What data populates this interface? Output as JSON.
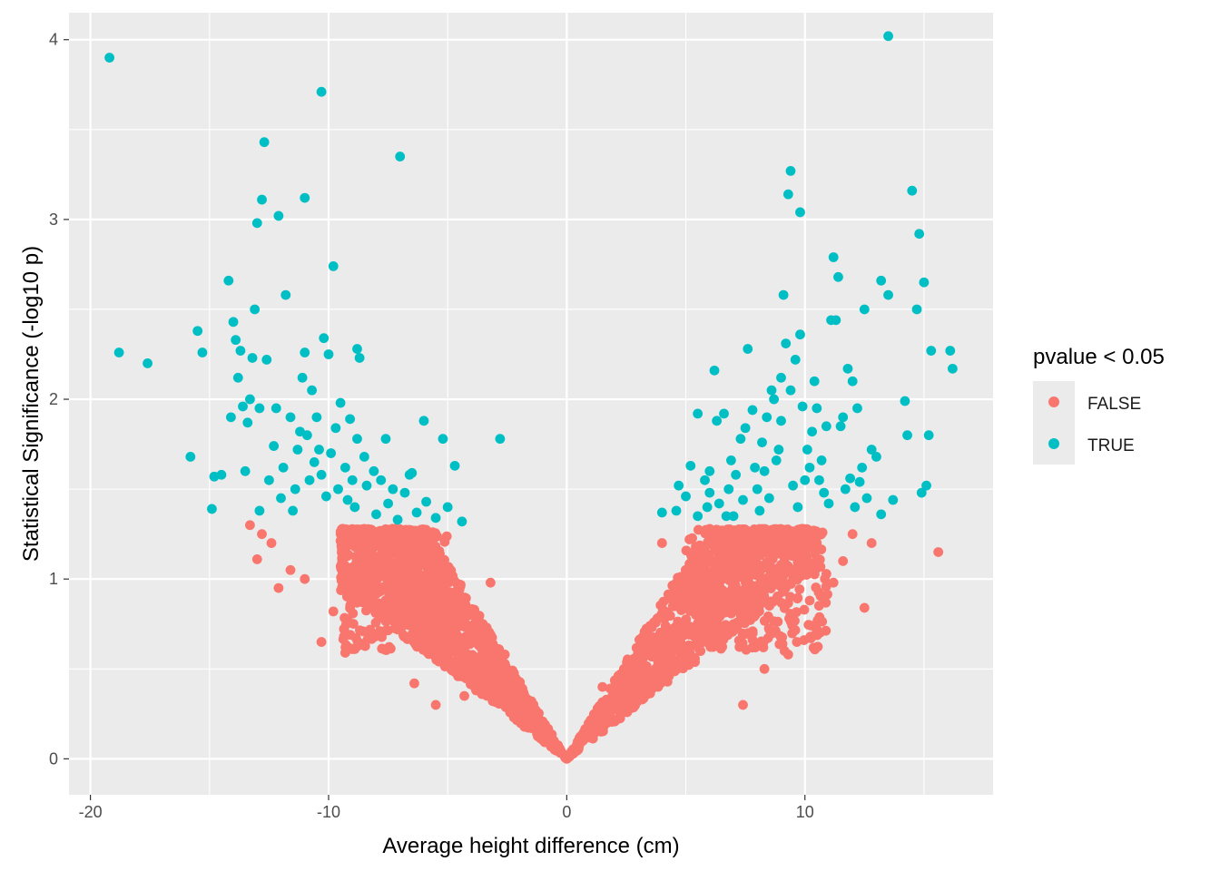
{
  "chart_data": {
    "type": "scatter",
    "title": "",
    "xlabel": "Average height difference (cm)",
    "ylabel": "Statistical Significance (-log10 p)",
    "xlim": [
      -20.9,
      17.9
    ],
    "ylim": [
      -0.2,
      4.15
    ],
    "x_ticks": [
      -20,
      -10,
      0,
      10
    ],
    "x_tick_labels": [
      "-20",
      "-10",
      "0",
      "10"
    ],
    "y_ticks": [
      0,
      1,
      2,
      3,
      4
    ],
    "y_tick_labels": [
      "0",
      "1",
      "2",
      "3",
      "4"
    ],
    "grid": true,
    "legend": {
      "title": "pvalue < 0.05",
      "position": "right",
      "entries": [
        {
          "label": "FALSE",
          "color": "#F8766D"
        },
        {
          "label": "TRUE",
          "color": "#00BFC4"
        }
      ]
    },
    "colors": {
      "panel": "#EBEBEB",
      "grid": "#FFFFFF",
      "false_point": "#F8766D",
      "true_point": "#00BFC4"
    },
    "significance_threshold": 1.3,
    "note_dense_band": "Dense FALSE points form a V: |y| approx |x|/8 to |x|/4 below 1.3",
    "series": [
      {
        "name": "TRUE",
        "points": [
          [
            -19.2,
            3.9
          ],
          [
            -18.8,
            2.26
          ],
          [
            -17.6,
            2.2
          ],
          [
            -15.8,
            1.68
          ],
          [
            -15.5,
            2.38
          ],
          [
            -15.3,
            2.26
          ],
          [
            -14.9,
            1.39
          ],
          [
            -14.2,
            2.66
          ],
          [
            -14.0,
            2.43
          ],
          [
            -13.9,
            2.33
          ],
          [
            -13.7,
            2.27
          ],
          [
            -13.4,
            1.87
          ],
          [
            -13.2,
            2.23
          ],
          [
            -13.1,
            2.5
          ],
          [
            -13.0,
            2.98
          ],
          [
            -12.8,
            3.11
          ],
          [
            -12.7,
            3.43
          ],
          [
            -12.6,
            2.22
          ],
          [
            -12.3,
            1.74
          ],
          [
            -12.1,
            3.02
          ],
          [
            -11.8,
            2.58
          ],
          [
            -11.6,
            1.9
          ],
          [
            -11.2,
            1.82
          ],
          [
            -11.0,
            3.12
          ],
          [
            -11.0,
            2.26
          ],
          [
            -10.5,
            1.9
          ],
          [
            -10.3,
            3.71
          ],
          [
            -10.2,
            2.34
          ],
          [
            -10.0,
            2.25
          ],
          [
            -9.8,
            2.74
          ],
          [
            -9.5,
            1.98
          ],
          [
            -9.1,
            1.89
          ],
          [
            -8.8,
            2.28
          ],
          [
            -8.7,
            2.23
          ],
          [
            -8.8,
            1.78
          ],
          [
            -7.6,
            1.78
          ],
          [
            -7.0,
            3.35
          ],
          [
            -6.5,
            1.59
          ],
          [
            -6.0,
            1.88
          ],
          [
            -5.2,
            1.78
          ],
          [
            -4.7,
            1.63
          ],
          [
            -4.4,
            1.32
          ],
          [
            -2.8,
            1.78
          ],
          [
            -12.0,
            1.45
          ],
          [
            -11.5,
            1.38
          ],
          [
            -10.8,
            1.55
          ],
          [
            -10.1,
            1.46
          ],
          [
            -9.6,
            1.5
          ],
          [
            -9.2,
            1.44
          ],
          [
            -8.9,
            1.4
          ],
          [
            -8.4,
            1.52
          ],
          [
            -8.0,
            1.36
          ],
          [
            -7.5,
            1.42
          ],
          [
            -7.1,
            1.33
          ],
          [
            -6.8,
            1.48
          ],
          [
            -6.3,
            1.37
          ],
          [
            -5.9,
            1.43
          ],
          [
            -5.5,
            1.34
          ],
          [
            -5.0,
            1.4
          ],
          [
            -12.5,
            1.55
          ],
          [
            -13.5,
            1.6
          ],
          [
            -14.5,
            1.58
          ],
          [
            -14.8,
            1.57
          ],
          [
            -12.9,
            1.38
          ],
          [
            -10.6,
            1.65
          ],
          [
            -9.9,
            1.7
          ],
          [
            -9.3,
            1.62
          ],
          [
            -8.5,
            1.68
          ],
          [
            -8.1,
            1.6
          ],
          [
            -7.8,
            1.55
          ],
          [
            -7.3,
            1.5
          ],
          [
            -6.6,
            1.58
          ],
          [
            -11.3,
            1.72
          ],
          [
            -10.9,
            1.8
          ],
          [
            -10.4,
            1.72
          ],
          [
            -9.7,
            1.84
          ],
          [
            -12.2,
            1.95
          ],
          [
            -11.9,
            1.62
          ],
          [
            -11.1,
            2.12
          ],
          [
            -10.7,
            2.05
          ],
          [
            -13.3,
            2.0
          ],
          [
            -12.9,
            1.95
          ],
          [
            -14.1,
            1.9
          ],
          [
            -13.8,
            2.12
          ],
          [
            -13.6,
            1.96
          ],
          [
            -11.4,
            1.5
          ],
          [
            -10.3,
            1.58
          ],
          [
            -9.0,
            1.55
          ],
          [
            4.0,
            1.37
          ],
          [
            4.6,
            1.38
          ],
          [
            4.7,
            1.52
          ],
          [
            5.0,
            1.46
          ],
          [
            5.2,
            1.63
          ],
          [
            5.5,
            1.35
          ],
          [
            5.8,
            1.55
          ],
          [
            6.0,
            1.48
          ],
          [
            6.2,
            2.16
          ],
          [
            6.4,
            1.42
          ],
          [
            6.6,
            1.92
          ],
          [
            6.9,
            1.66
          ],
          [
            7.0,
            1.35
          ],
          [
            7.3,
            1.78
          ],
          [
            7.6,
            2.28
          ],
          [
            7.8,
            1.94
          ],
          [
            8.0,
            1.5
          ],
          [
            8.3,
            1.6
          ],
          [
            8.6,
            2.05
          ],
          [
            8.8,
            1.66
          ],
          [
            9.0,
            1.88
          ],
          [
            9.1,
            2.58
          ],
          [
            9.2,
            2.31
          ],
          [
            9.3,
            3.14
          ],
          [
            9.4,
            3.27
          ],
          [
            9.6,
            2.22
          ],
          [
            9.8,
            3.04
          ],
          [
            9.8,
            2.36
          ],
          [
            10.1,
            1.72
          ],
          [
            10.4,
            2.1
          ],
          [
            10.6,
            1.55
          ],
          [
            10.9,
            1.85
          ],
          [
            11.0,
            1.42
          ],
          [
            11.1,
            2.44
          ],
          [
            11.2,
            2.79
          ],
          [
            11.4,
            2.68
          ],
          [
            11.3,
            2.44
          ],
          [
            11.6,
            1.9
          ],
          [
            11.8,
            2.17
          ],
          [
            12.0,
            2.1
          ],
          [
            12.3,
            1.54
          ],
          [
            12.5,
            2.5
          ],
          [
            13.0,
            1.68
          ],
          [
            13.2,
            2.66
          ],
          [
            13.5,
            2.58
          ],
          [
            13.7,
            1.44
          ],
          [
            13.5,
            4.02
          ],
          [
            14.2,
            1.99
          ],
          [
            14.5,
            3.16
          ],
          [
            14.7,
            2.5
          ],
          [
            14.8,
            2.92
          ],
          [
            15.0,
            2.65
          ],
          [
            15.1,
            1.52
          ],
          [
            15.2,
            1.8
          ],
          [
            15.3,
            2.27
          ],
          [
            16.1,
            2.27
          ],
          [
            16.2,
            2.17
          ],
          [
            14.3,
            1.8
          ],
          [
            14.9,
            1.48
          ],
          [
            13.2,
            1.36
          ],
          [
            12.1,
            1.4
          ],
          [
            9.5,
            1.52
          ],
          [
            8.5,
            1.45
          ],
          [
            7.1,
            1.58
          ],
          [
            5.5,
            1.92
          ],
          [
            6.0,
            1.6
          ],
          [
            6.8,
            1.5
          ],
          [
            7.9,
            1.62
          ],
          [
            8.2,
            1.76
          ],
          [
            8.9,
            1.72
          ],
          [
            9.7,
            1.4
          ],
          [
            10.3,
            1.82
          ],
          [
            10.7,
            1.66
          ],
          [
            11.9,
            1.56
          ],
          [
            12.4,
            1.62
          ],
          [
            8.7,
            2.0
          ],
          [
            9.0,
            2.12
          ],
          [
            9.9,
            1.96
          ],
          [
            10.5,
            1.95
          ],
          [
            11.5,
            1.85
          ],
          [
            12.2,
            1.95
          ],
          [
            8.1,
            1.38
          ],
          [
            7.4,
            1.44
          ],
          [
            6.7,
            1.35
          ],
          [
            10.0,
            1.55
          ],
          [
            10.8,
            1.48
          ],
          [
            11.7,
            1.5
          ],
          [
            12.8,
            1.72
          ],
          [
            12.6,
            1.45
          ],
          [
            5.9,
            1.4
          ],
          [
            6.3,
            1.88
          ],
          [
            7.5,
            1.84
          ],
          [
            8.4,
            1.9
          ],
          [
            9.4,
            2.05
          ],
          [
            10.2,
            1.62
          ]
        ]
      },
      {
        "name": "FALSE",
        "points": [
          [
            15.6,
            1.15
          ],
          [
            12.5,
            0.84
          ],
          [
            -10.3,
            0.65
          ],
          [
            -9.3,
            0.59
          ],
          [
            -8.9,
            0.61
          ],
          [
            -12.1,
            0.95
          ],
          [
            -13.0,
            1.11
          ],
          [
            -13.3,
            1.3
          ],
          [
            -12.8,
            1.25
          ],
          [
            -12.4,
            1.2
          ],
          [
            -11.6,
            1.05
          ],
          [
            -11.0,
            1.0
          ],
          [
            -9.8,
            0.82
          ],
          [
            -7.2,
            1.28
          ],
          [
            -3.2,
            0.98
          ],
          [
            -2.2,
            0.35
          ],
          [
            1.5,
            0.4
          ],
          [
            2.4,
            0.5
          ],
          [
            3.0,
            0.6
          ],
          [
            3.8,
            0.78
          ],
          [
            4.0,
            1.2
          ],
          [
            6.0,
            0.7
          ],
          [
            7.4,
            0.3
          ],
          [
            8.3,
            0.5
          ],
          [
            10.2,
            0.88
          ],
          [
            11.2,
            0.98
          ],
          [
            11.6,
            1.1
          ],
          [
            12.0,
            1.25
          ],
          [
            12.8,
            1.2
          ],
          [
            -6.4,
            0.42
          ],
          [
            -5.5,
            0.3
          ],
          [
            -4.3,
            0.35
          ],
          [
            -3.6,
            0.4
          ],
          [
            -2.6,
            0.58
          ],
          [
            -7.8,
            1.1
          ],
          [
            -6.9,
            0.95
          ],
          [
            5.1,
            1.0
          ],
          [
            9.3,
            0.58
          ],
          [
            10.5,
            0.72
          ],
          [
            4.3,
            0.48
          ]
        ]
      }
    ]
  }
}
